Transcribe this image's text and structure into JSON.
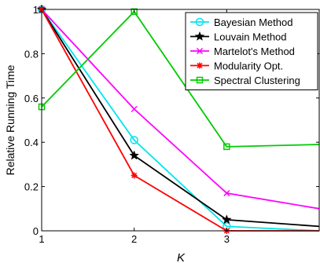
{
  "chart_data": {
    "type": "line",
    "title": "",
    "xlabel": "K",
    "ylabel": "Relative Running Time",
    "xlim": [
      1,
      4
    ],
    "ylim": [
      0,
      1
    ],
    "xticks": [
      "1",
      "2",
      "3"
    ],
    "yticks": [
      "0",
      "0.2",
      "0.4",
      "0.6",
      "0.8",
      "1"
    ],
    "grid": false,
    "legend_position": "top-right",
    "series": [
      {
        "name": "Bayesian Method",
        "color": "#00e5ee",
        "marker": "circle",
        "points": [
          [
            1,
            1.0
          ],
          [
            2,
            0.41
          ],
          [
            3,
            0.02
          ],
          [
            4,
            0.0
          ]
        ]
      },
      {
        "name": "Louvain Method",
        "color": "#000000",
        "marker": "star",
        "points": [
          [
            1,
            1.0
          ],
          [
            2,
            0.34
          ],
          [
            3,
            0.05
          ],
          [
            4,
            0.02
          ]
        ]
      },
      {
        "name": "Martelot's Method",
        "color": "#ff00ff",
        "marker": "x",
        "points": [
          [
            1,
            1.0
          ],
          [
            2,
            0.55
          ],
          [
            3,
            0.17
          ],
          [
            4,
            0.1
          ]
        ]
      },
      {
        "name": "Modularity Opt.",
        "color": "#ff0000",
        "marker": "asterisk",
        "points": [
          [
            1,
            1.0
          ],
          [
            2,
            0.25
          ],
          [
            3,
            0.0
          ],
          [
            4,
            0.0
          ]
        ]
      },
      {
        "name": "Spectral Clustering",
        "color": "#00cc00",
        "marker": "square",
        "points": [
          [
            1,
            0.56
          ],
          [
            2,
            0.99
          ],
          [
            3,
            0.38
          ],
          [
            4,
            0.39
          ]
        ]
      }
    ]
  }
}
